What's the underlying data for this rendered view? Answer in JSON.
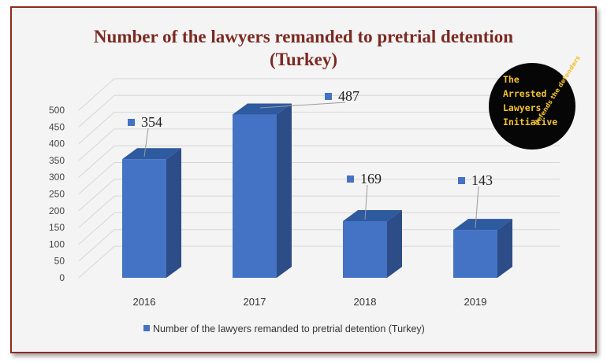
{
  "chart_data": {
    "type": "bar",
    "title": "Number of the lawyers remanded to pretrial detention",
    "subtitle": "(Turkey)",
    "categories": [
      "2016",
      "2017",
      "2018",
      "2019"
    ],
    "series": [
      {
        "name": "Number of the lawyers remanded to pretrial detention (Turkey)",
        "values": [
          354,
          487,
          169,
          143
        ],
        "color": "#4472c4"
      }
    ],
    "data_labels": [
      "354",
      "487",
      "169",
      "143"
    ],
    "ylim": [
      0,
      500
    ],
    "yticks": [
      "0",
      "50",
      "100",
      "150",
      "200",
      "250",
      "300",
      "350",
      "400",
      "450",
      "500"
    ],
    "grid": true,
    "legend": "bottom",
    "style": "3d-column"
  },
  "logo": {
    "lines": [
      "The",
      "Arrested",
      "Lawyers",
      "Initiative"
    ],
    "tagline": "defends the defenders"
  },
  "colors": {
    "bar_front": "#4472c4",
    "bar_side": "#2c4d87",
    "bar_top": "#2e5aa0",
    "title": "#7b2a22",
    "border": "#8e2a22"
  }
}
